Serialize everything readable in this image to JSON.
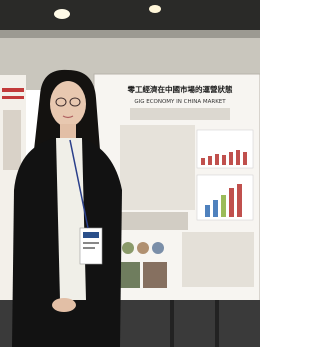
{
  "poster": {
    "title": "零工經濟在中國市場的運營狀態",
    "subtitle": "GIG ECONOMY IN CHINA MARKET"
  }
}
